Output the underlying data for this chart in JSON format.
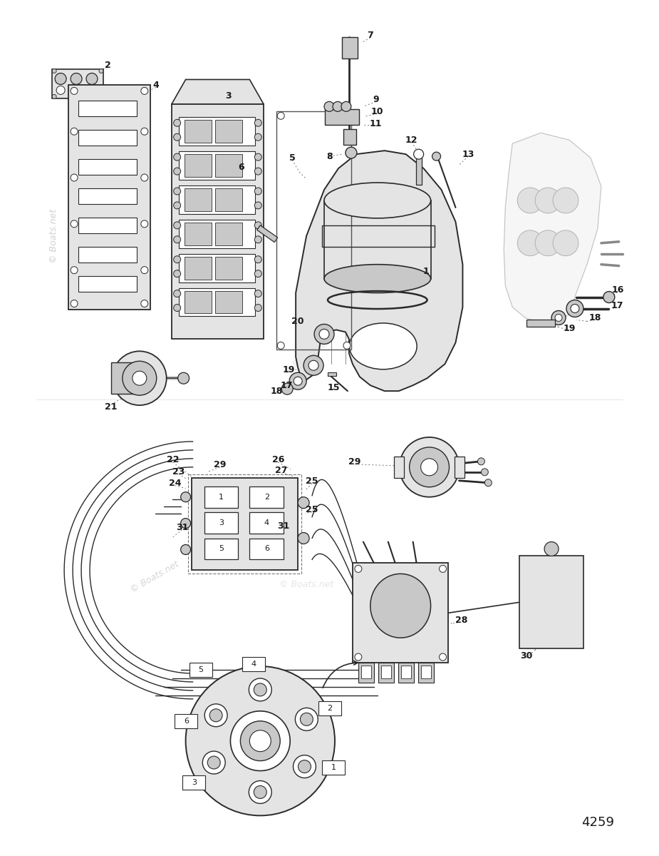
{
  "background_color": "#ffffff",
  "watermark1": "© Boats.net",
  "watermark2": "© Boats.net",
  "page_number": "4259",
  "fig_width": 9.25,
  "fig_height": 12.0,
  "dpi": 100,
  "line_color": "#2a2a2a",
  "text_color": "#1a1a1a",
  "gray_fill": "#c8c8c8",
  "light_gray": "#e4e4e4",
  "dark_gray": "#888888",
  "mid_gray": "#b0b0b0"
}
